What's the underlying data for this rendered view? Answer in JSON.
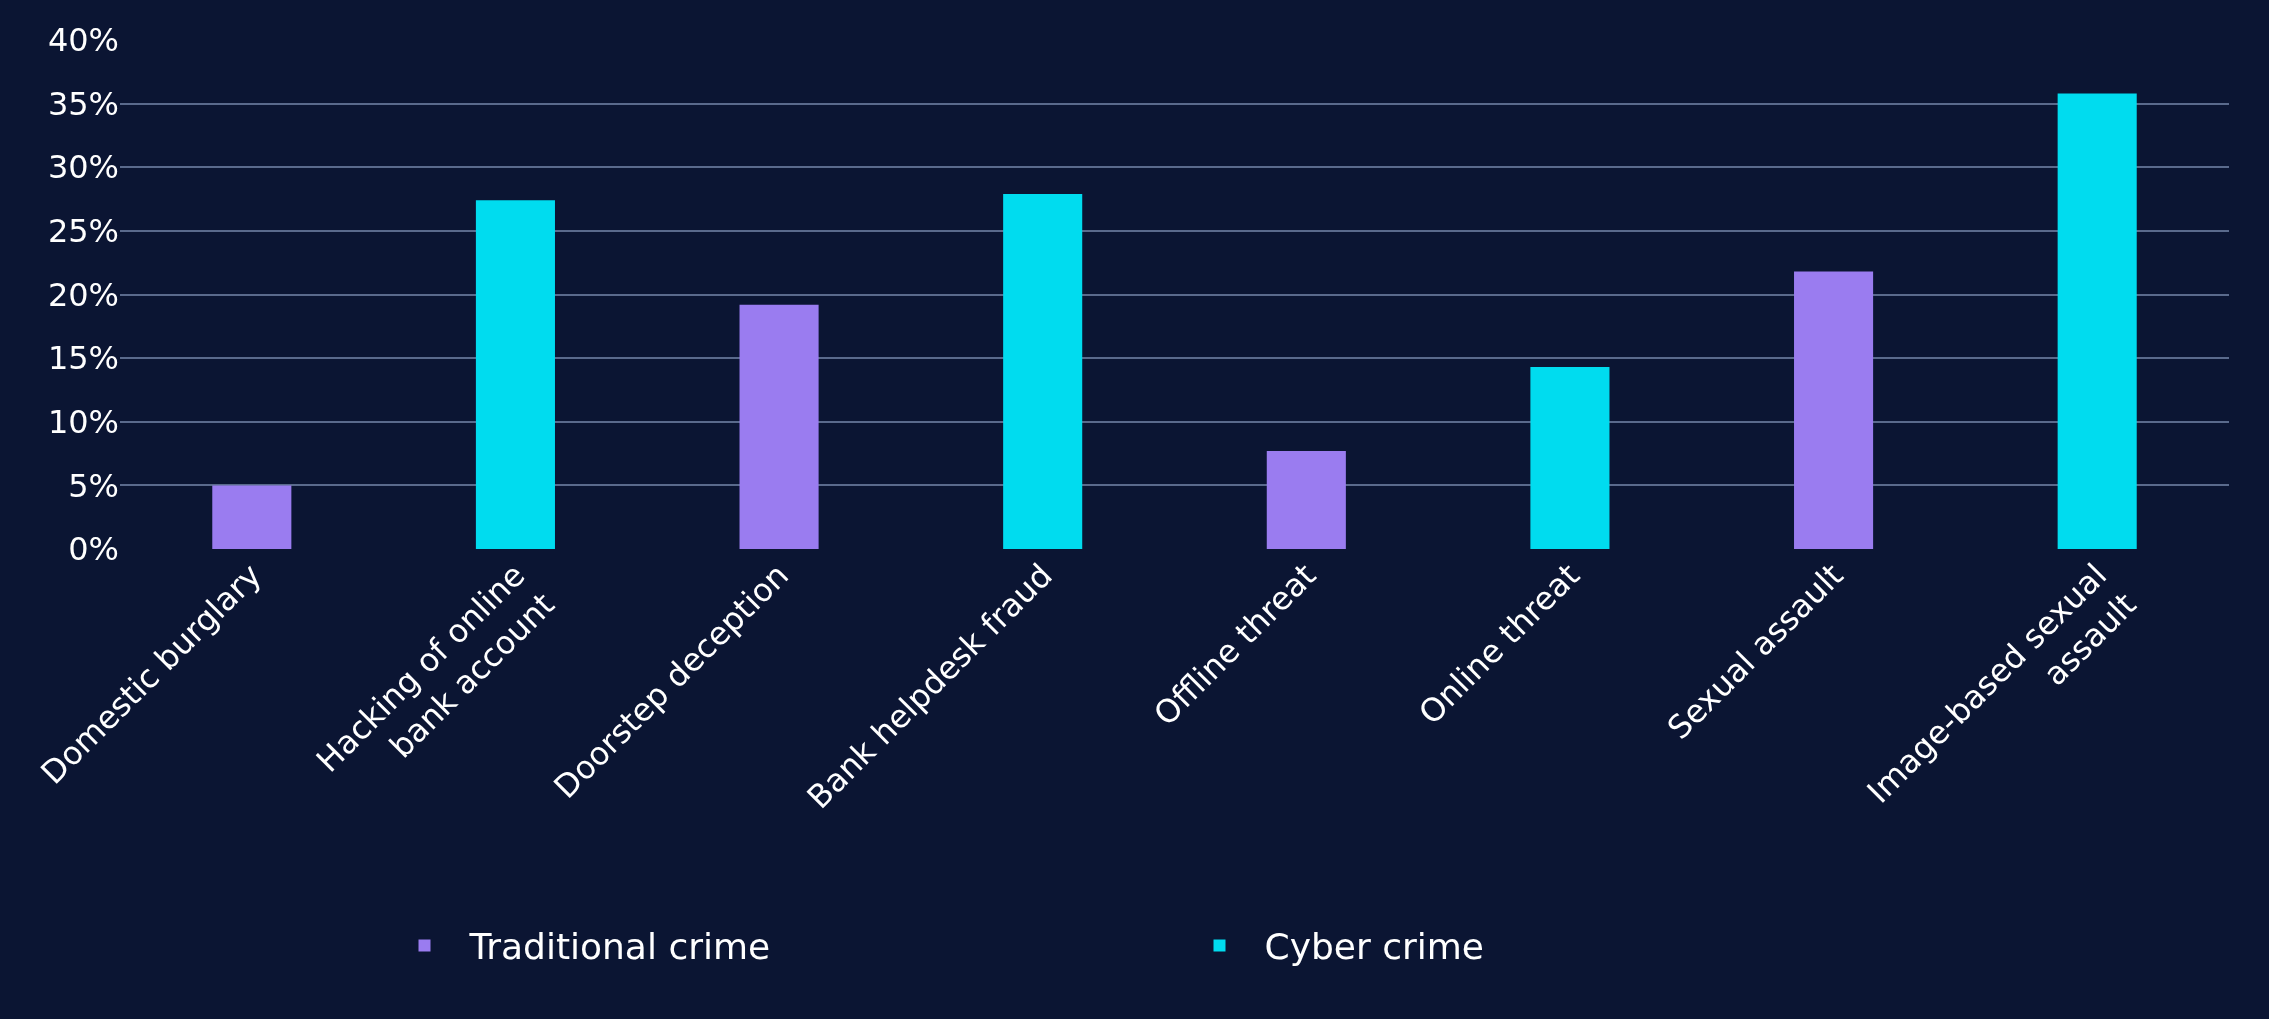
{
  "chart_data": {
    "type": "bar",
    "categories": [
      "Domestic burglary",
      "Hacking of online bank account",
      "Doorstep deception",
      "Bank helpdesk fraud",
      "Offline threat",
      "Online threat",
      "Sexual assault",
      "Image-based sexual assault"
    ],
    "series": [
      {
        "name": "Traditional crime",
        "color": "#9a7cf0",
        "values": [
          5,
          null,
          19.2,
          null,
          7.7,
          null,
          21.8,
          null
        ]
      },
      {
        "name": "Cyber crime",
        "color": "#00dcef",
        "values": [
          null,
          27.4,
          null,
          27.9,
          null,
          14.3,
          null,
          35.8
        ]
      }
    ],
    "ylim": [
      0,
      40
    ],
    "yticks": [
      {
        "value": 0,
        "label": "0%"
      },
      {
        "value": 5,
        "label": "5%"
      },
      {
        "value": 10,
        "label": "10%"
      },
      {
        "value": 15,
        "label": "15%"
      },
      {
        "value": 20,
        "label": "20%"
      },
      {
        "value": 25,
        "label": "25%"
      },
      {
        "value": 30,
        "label": "30%"
      },
      {
        "value": 35,
        "label": "35%"
      },
      {
        "value": 40,
        "label": "40%"
      }
    ],
    "grid": "y",
    "legend": "bottom"
  }
}
